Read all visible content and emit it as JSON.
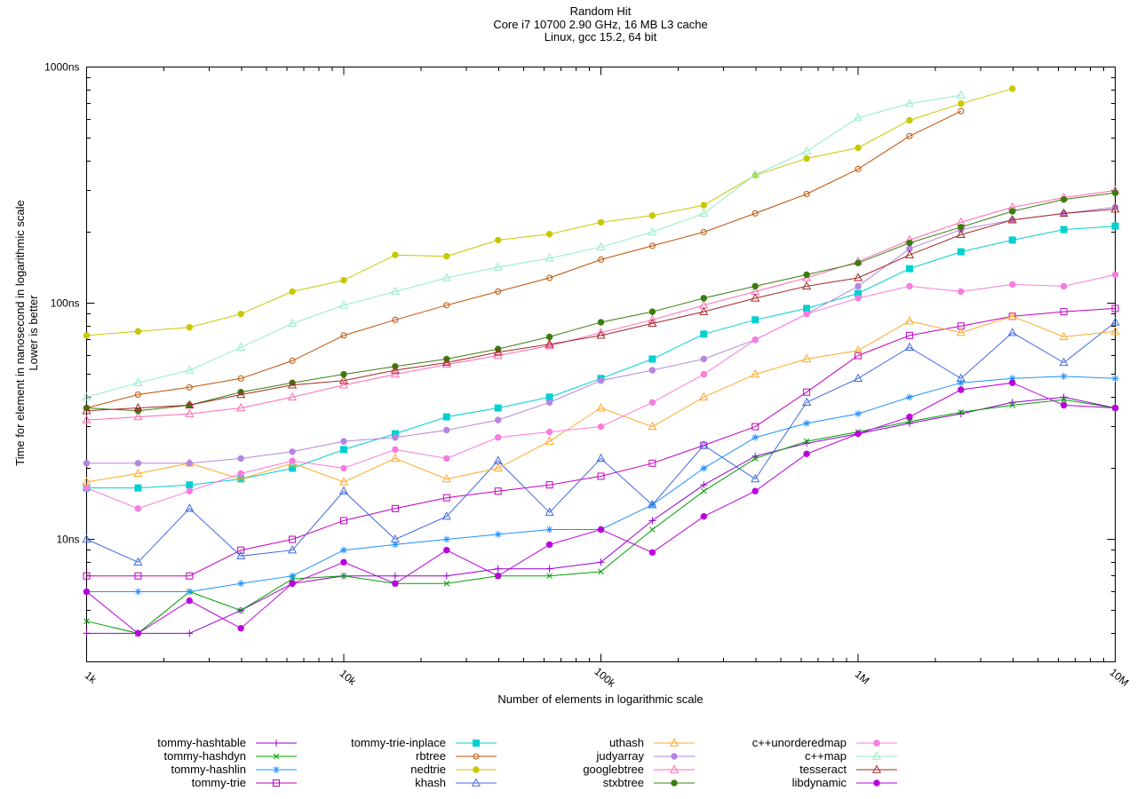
{
  "title": {
    "line1": "Random Hit",
    "line2": "Core i7 10700 2.90 GHz, 16 MB L3 cache",
    "line3": "Linux, gcc 15.2, 64 bit"
  },
  "axes": {
    "y_label_line1": "Time for element in nanosecond in logarithmic scale",
    "y_label_line2": "Lower is better",
    "x_label": "Number of elements in logarithmic scale",
    "y_ticks": [
      {
        "value": 1000,
        "label": "1000ns"
      },
      {
        "value": 100,
        "label": "100ns"
      },
      {
        "value": 10,
        "label": "10ns"
      }
    ],
    "x_ticks": [
      {
        "value": 1000,
        "label": "1k"
      },
      {
        "value": 10000,
        "label": "10k"
      },
      {
        "value": 100000,
        "label": "100k"
      },
      {
        "value": 1000000,
        "label": "1M"
      },
      {
        "value": 10000000,
        "label": "10M"
      }
    ]
  },
  "chart_data": {
    "type": "line",
    "x_scale": "log",
    "y_scale": "log",
    "x_range": [
      1000,
      10000000
    ],
    "y_range": [
      3,
      1000
    ],
    "grid": false,
    "legend_position": "bottom",
    "x": [
      1000,
      1585,
      2512,
      3981,
      6310,
      10000,
      15850,
      25120,
      39810,
      63100,
      100000,
      158500,
      251200,
      398100,
      631000,
      1000000,
      1585000,
      2512000,
      3981000,
      6310000,
      10000000
    ],
    "series": [
      {
        "name": "tommy-hashtable",
        "color": "#9400d3",
        "marker": "plus",
        "values": [
          4,
          4,
          4,
          5,
          6.5,
          7,
          7,
          7,
          7.5,
          7.5,
          8,
          12,
          17,
          22.5,
          25.5,
          28,
          31,
          34,
          38,
          40,
          36
        ]
      },
      {
        "name": "tommy-hashdyn",
        "color": "#00a000",
        "marker": "cross",
        "values": [
          4.5,
          4,
          6,
          5,
          6.8,
          7,
          6.5,
          6.5,
          7,
          7,
          7.3,
          11,
          16,
          22,
          26,
          28.5,
          31.5,
          34.5,
          37,
          39,
          36
        ]
      },
      {
        "name": "tommy-hashlin",
        "color": "#1e90ff",
        "marker": "asterisk",
        "values": [
          6,
          6,
          6,
          6.5,
          7,
          9,
          9.5,
          10,
          10.5,
          11,
          11,
          14,
          20,
          27,
          31,
          34,
          40,
          46,
          48,
          49,
          48
        ]
      },
      {
        "name": "tommy-trie",
        "color": "#c000c0",
        "marker": "square-open",
        "values": [
          7,
          7,
          7,
          9,
          10,
          12,
          13.5,
          15,
          16,
          17,
          18.5,
          21,
          25,
          30,
          42,
          60,
          73,
          80,
          88,
          92,
          95
        ]
      },
      {
        "name": "tommy-trie-inplace",
        "color": "#00d0d0",
        "marker": "square-filled",
        "values": [
          16.5,
          16.5,
          17,
          18,
          20,
          24,
          28,
          33,
          36,
          40,
          48,
          58,
          74,
          85,
          95,
          110,
          140,
          165,
          185,
          205,
          212
        ]
      },
      {
        "name": "rbtree",
        "color": "#c04f00",
        "marker": "circle-open",
        "values": [
          36,
          41,
          44,
          48,
          57,
          73,
          85,
          98,
          112,
          128,
          153,
          175,
          200,
          240,
          290,
          370,
          510,
          650,
          null,
          null,
          null
        ]
      },
      {
        "name": "nedtrie",
        "color": "#c8c800",
        "marker": "circle-filled",
        "values": [
          73,
          76,
          79,
          90,
          112,
          125,
          160,
          158,
          185,
          196,
          220,
          235,
          260,
          348,
          410,
          455,
          595,
          700,
          810,
          null,
          null
        ]
      },
      {
        "name": "khash",
        "color": "#4169e1",
        "marker": "triangle-open",
        "values": [
          10,
          8,
          13.5,
          8.5,
          9,
          16,
          10,
          12.5,
          21.5,
          13,
          22,
          14,
          25,
          18,
          38,
          48,
          65,
          48,
          75,
          56,
          83
        ]
      },
      {
        "name": "uthash",
        "color": "#ffa929",
        "marker": "triangle-open",
        "values": [
          17.5,
          19,
          21,
          18,
          21,
          17.5,
          22,
          18,
          20,
          26,
          36,
          30,
          40,
          50,
          58,
          63,
          84,
          75,
          88,
          72,
          76
        ]
      },
      {
        "name": "judyarray",
        "color": "#b486e0",
        "marker": "circle-filled",
        "values": [
          21,
          21,
          21,
          22,
          23.5,
          26,
          27,
          29,
          32,
          38,
          47,
          52,
          58,
          70,
          90,
          118,
          170,
          205,
          225,
          240,
          255
        ]
      },
      {
        "name": "googlebtree",
        "color": "#ff69b4",
        "marker": "triangle-open",
        "values": [
          32,
          33,
          34,
          36,
          40,
          45,
          50,
          55,
          60,
          66,
          75,
          85,
          98,
          112,
          128,
          150,
          185,
          220,
          255,
          280,
          300
        ]
      },
      {
        "name": "stxbtree",
        "color": "#3c7d0e",
        "marker": "circle-filled",
        "values": [
          36,
          35,
          37,
          42,
          46,
          50,
          54,
          58,
          64,
          72,
          83,
          92,
          105,
          118,
          132,
          148,
          180,
          210,
          245,
          275,
          293
        ]
      },
      {
        "name": "c++unorderedmap",
        "color": "#f87cdf",
        "marker": "circle-filled",
        "values": [
          16.5,
          13.5,
          16,
          19,
          21.5,
          20,
          24,
          22,
          27,
          28.5,
          30,
          38,
          50,
          70,
          90,
          105,
          118,
          112,
          120,
          118,
          132
        ]
      },
      {
        "name": "c++map",
        "color": "#90eec8",
        "marker": "triangle-open",
        "values": [
          40,
          46,
          52,
          65,
          82,
          98,
          112,
          128,
          142,
          155,
          173,
          200,
          240,
          350,
          440,
          610,
          700,
          760,
          null,
          null,
          null
        ]
      },
      {
        "name": "tesseract",
        "color": "#a52828",
        "marker": "triangle-open",
        "values": [
          35,
          36,
          37,
          41,
          45,
          47,
          52,
          56,
          62,
          67,
          73,
          82,
          92,
          105,
          118,
          128,
          160,
          195,
          225,
          240,
          250
        ]
      },
      {
        "name": "libdynamic",
        "color": "#bb00dd",
        "marker": "circle-filled",
        "values": [
          6,
          4,
          5.5,
          4.2,
          6.5,
          8,
          6.5,
          9,
          7,
          9.5,
          11,
          8.8,
          12.5,
          16,
          23,
          28,
          33,
          43,
          46,
          37,
          36
        ]
      }
    ],
    "legend_columns": [
      [
        "tommy-hashtable",
        "tommy-hashdyn",
        "tommy-hashlin",
        "tommy-trie"
      ],
      [
        "tommy-trie-inplace",
        "rbtree",
        "nedtrie",
        "khash"
      ],
      [
        "uthash",
        "judyarray",
        "googlebtree",
        "stxbtree"
      ],
      [
        "c++unorderedmap",
        "c++map",
        "tesseract",
        "libdynamic"
      ]
    ]
  }
}
